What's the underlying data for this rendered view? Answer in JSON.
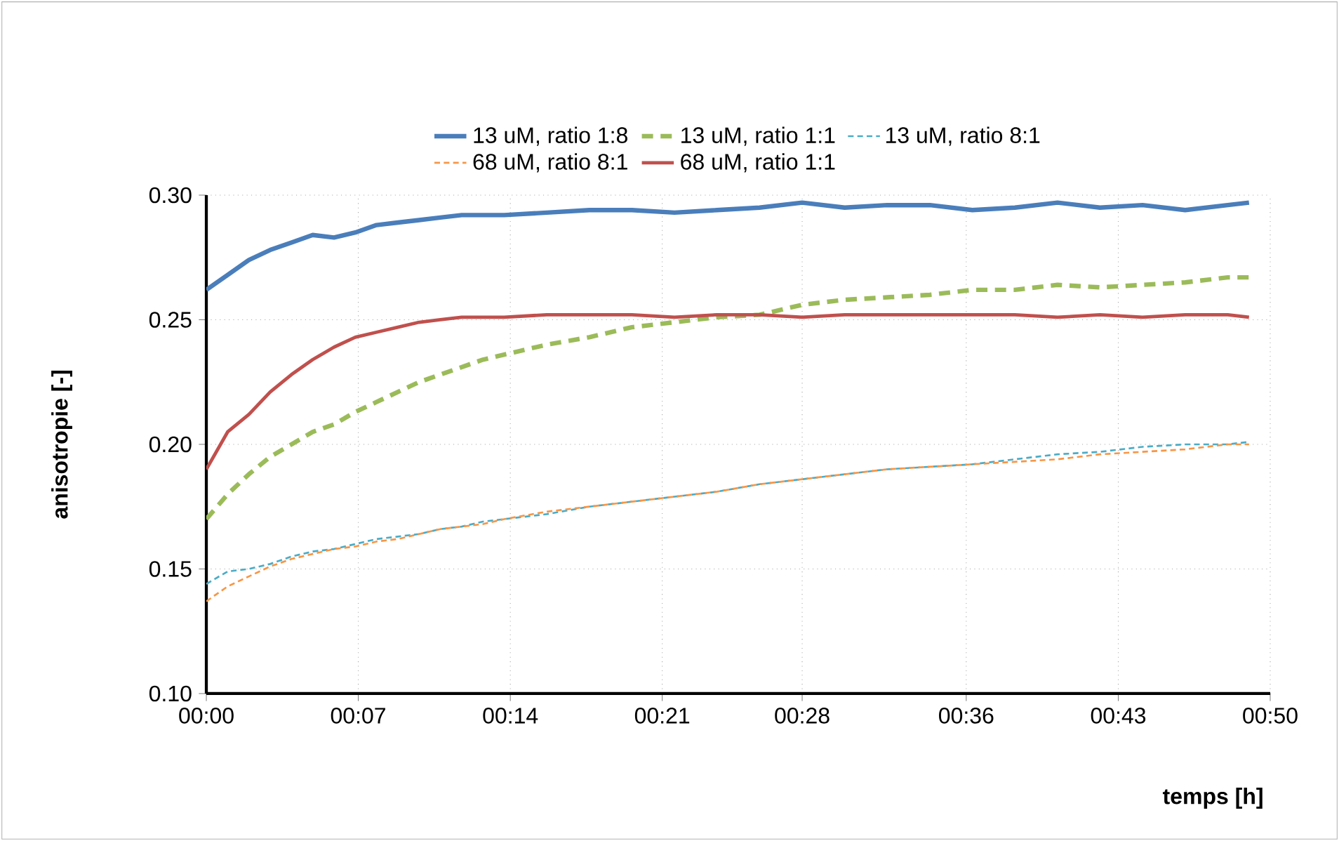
{
  "chart_data": {
    "type": "line",
    "xlabel": "temps [h]",
    "ylabel": "anisotropie [-]",
    "x": [
      0,
      0.0167,
      0.0333,
      0.05,
      0.0667,
      0.0833,
      0.1,
      0.1167,
      0.1333,
      0.15,
      0.1667,
      0.1833,
      0.2,
      0.2167,
      0.2333,
      0.2667,
      0.3,
      0.3333,
      0.3667,
      0.4,
      0.4333,
      0.4667,
      0.5,
      0.5333,
      0.5667,
      0.6,
      0.6333,
      0.6667,
      0.7,
      0.7333,
      0.7667,
      0.8,
      0.8167
    ],
    "series": [
      {
        "name": "13 uM, ratio 1:8",
        "color": "#4a7ebb",
        "line_style": "solid",
        "values": [
          0.262,
          0.268,
          0.274,
          0.278,
          0.281,
          0.284,
          0.283,
          0.285,
          0.288,
          0.289,
          0.29,
          0.291,
          0.292,
          0.292,
          0.292,
          0.293,
          0.294,
          0.294,
          0.293,
          0.294,
          0.295,
          0.297,
          0.295,
          0.296,
          0.296,
          0.294,
          0.295,
          0.297,
          0.295,
          0.296,
          0.294,
          0.296,
          0.297
        ]
      },
      {
        "name": "13 uM, ratio 1:1",
        "color": "#9bbb59",
        "line_style": "dashed",
        "values": [
          0.17,
          0.18,
          0.188,
          0.195,
          0.2,
          0.205,
          0.208,
          0.213,
          0.217,
          0.221,
          0.225,
          0.228,
          0.231,
          0.234,
          0.236,
          0.24,
          0.243,
          0.247,
          0.249,
          0.251,
          0.252,
          0.256,
          0.258,
          0.259,
          0.26,
          0.262,
          0.262,
          0.264,
          0.263,
          0.264,
          0.265,
          0.267,
          0.267
        ]
      },
      {
        "name": "13 uM, ratio 8:1",
        "color": "#4bacc6",
        "line_style": "dashed",
        "values": [
          0.144,
          0.149,
          0.15,
          0.152,
          0.155,
          0.157,
          0.158,
          0.16,
          0.162,
          0.163,
          0.164,
          0.166,
          0.167,
          0.169,
          0.17,
          0.172,
          0.175,
          0.177,
          0.179,
          0.181,
          0.184,
          0.186,
          0.188,
          0.19,
          0.191,
          0.192,
          0.194,
          0.196,
          0.197,
          0.199,
          0.2,
          0.2,
          0.201
        ]
      },
      {
        "name": "68 uM, ratio 8:1",
        "color": "#f79646",
        "line_style": "dashed",
        "values": [
          0.137,
          0.143,
          0.147,
          0.151,
          0.154,
          0.156,
          0.158,
          0.159,
          0.161,
          0.162,
          0.164,
          0.166,
          0.167,
          0.168,
          0.17,
          0.173,
          0.175,
          0.177,
          0.179,
          0.181,
          0.184,
          0.186,
          0.188,
          0.19,
          0.191,
          0.192,
          0.193,
          0.194,
          0.196,
          0.197,
          0.198,
          0.2,
          0.2
        ]
      },
      {
        "name": "68 uM, ratio 1:1",
        "color": "#c0504d",
        "line_style": "solid",
        "values": [
          0.19,
          0.205,
          0.212,
          0.221,
          0.228,
          0.234,
          0.239,
          0.243,
          0.245,
          0.247,
          0.249,
          0.25,
          0.251,
          0.251,
          0.251,
          0.252,
          0.252,
          0.252,
          0.251,
          0.252,
          0.252,
          0.251,
          0.252,
          0.252,
          0.252,
          0.252,
          0.252,
          0.251,
          0.252,
          0.251,
          0.252,
          0.252,
          0.251
        ]
      }
    ],
    "xlim": [
      0,
      0.8333
    ],
    "xticks": [
      {
        "value": 0,
        "label": "00:00"
      },
      {
        "value": 0.119,
        "label": "00:07"
      },
      {
        "value": 0.2381,
        "label": "00:14"
      },
      {
        "value": 0.3571,
        "label": "00:21"
      },
      {
        "value": 0.4667,
        "label": "00:28"
      },
      {
        "value": 0.5952,
        "label": "00:36"
      },
      {
        "value": 0.7143,
        "label": "00:43"
      },
      {
        "value": 0.8333,
        "label": "00:50"
      }
    ],
    "ylim": [
      0.1,
      0.3
    ],
    "yticks": [
      {
        "value": 0.1,
        "label": "0.10"
      },
      {
        "value": 0.15,
        "label": "0.15"
      },
      {
        "value": 0.2,
        "label": "0.20"
      },
      {
        "value": 0.25,
        "label": "0.25"
      },
      {
        "value": 0.3,
        "label": "0.30"
      }
    ],
    "grid": true,
    "legend": "top",
    "marker": "none"
  }
}
